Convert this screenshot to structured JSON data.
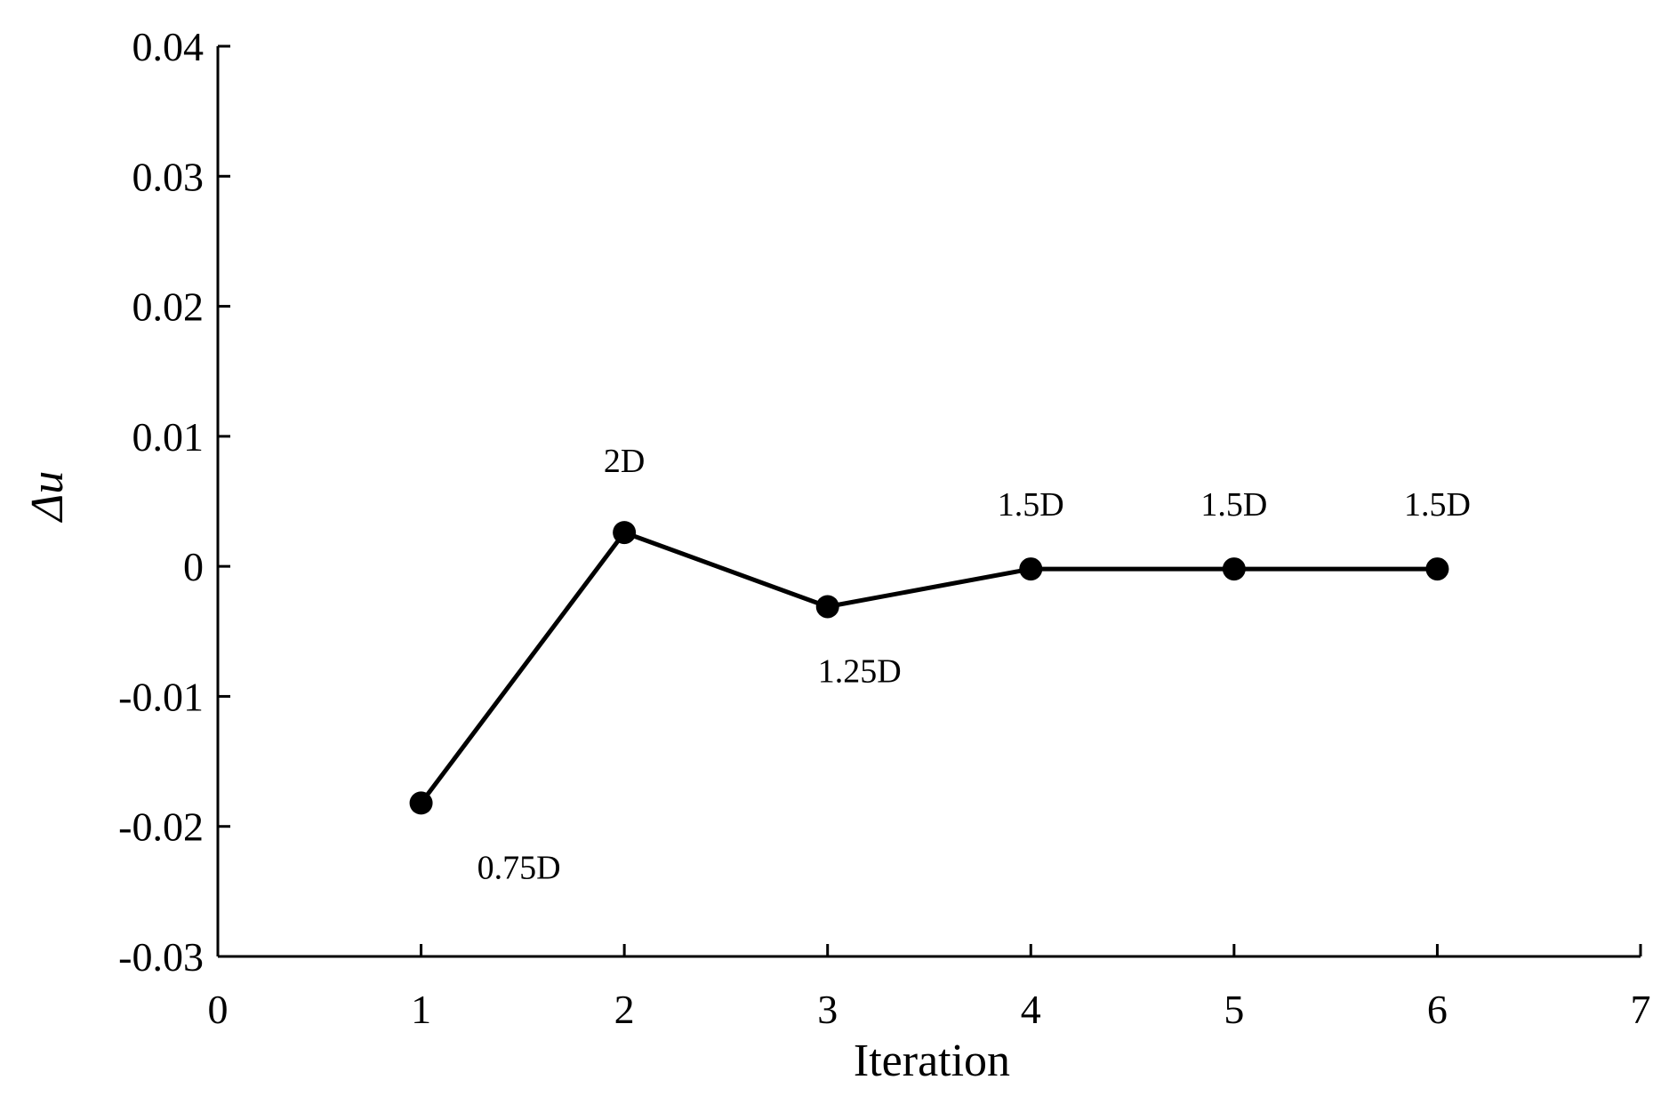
{
  "chart_data": {
    "type": "line",
    "title": "",
    "xlabel": "Iteration",
    "ylabel": "Δu",
    "xlim": [
      0,
      7
    ],
    "ylim": [
      -0.03,
      0.04
    ],
    "x_ticks": [
      "0",
      "1",
      "2",
      "3",
      "4",
      "5",
      "6",
      "7"
    ],
    "y_ticks": [
      "-0.03",
      "-0.02",
      "-0.01",
      "0",
      "0.01",
      "0.02",
      "0.03",
      "0.04"
    ],
    "grid": false,
    "legend": "none",
    "series": [
      {
        "x": [
          1,
          2,
          3,
          4,
          5,
          6
        ],
        "y": [
          -0.0182,
          0.0026,
          -0.0031,
          -0.0002,
          -0.0002,
          -0.0002
        ],
        "labels": [
          "0.75D",
          "2D",
          "1.25D",
          "1.5D",
          "1.5D",
          "1.5D"
        ],
        "color": "#000000",
        "marker": "circle"
      }
    ]
  }
}
